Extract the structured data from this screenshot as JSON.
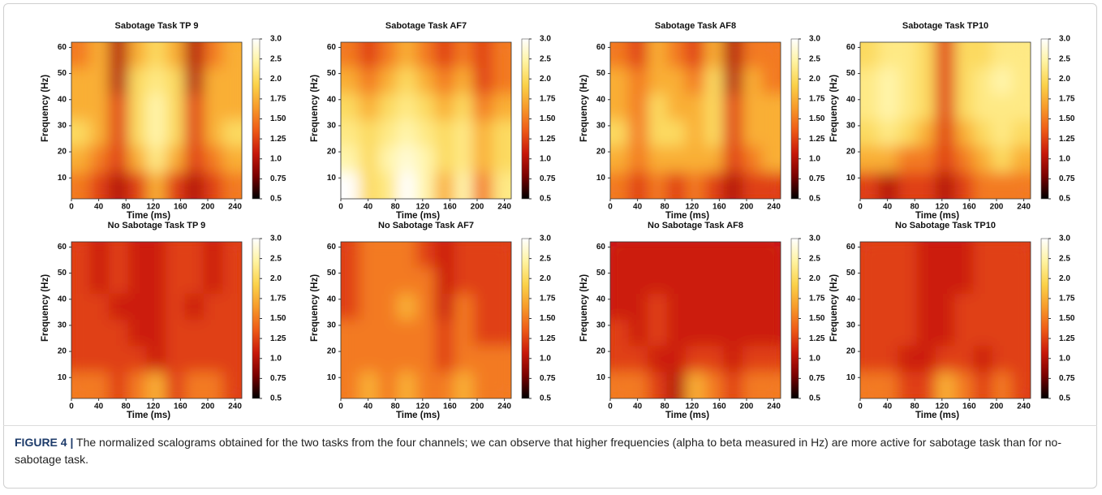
{
  "chart_data": [
    {
      "type": "heatmap",
      "title": "Sabotage Task TP 9",
      "xlabel": "Time (ms)",
      "ylabel": "Frequency (Hz)",
      "xlim": [
        0,
        250
      ],
      "ylim": [
        2,
        62
      ],
      "xticks": [
        0,
        40,
        80,
        120,
        160,
        200,
        240
      ],
      "yticks": [
        10,
        20,
        30,
        40,
        50,
        60
      ],
      "cticks": [
        {
          "value": 3,
          "label": "3.0"
        },
        2.5,
        {
          "value": 2,
          "label": "2.0"
        },
        1.75,
        {
          "value": 1.5,
          "label": "1.50"
        },
        1.25,
        {
          "value": 1,
          "label": "1.0"
        },
        0.75,
        0.5
      ],
      "colormap": [
        "#000000",
        "#7a0000",
        "#c8180a",
        "#ee5a16",
        "#f79a2a",
        "#fbd24a",
        "#fff3a0",
        "#ffffff"
      ],
      "z": [
        [
          1.5,
          1.75,
          1.0,
          1.75,
          2.0,
          1.75,
          1.0,
          1.5,
          1.75
        ],
        [
          1.75,
          1.75,
          1.0,
          2.0,
          2.25,
          2.0,
          1.0,
          1.75,
          1.75
        ],
        [
          1.75,
          1.75,
          1.25,
          2.0,
          2.5,
          2.0,
          1.25,
          1.75,
          1.75
        ],
        [
          2.0,
          1.75,
          1.25,
          2.0,
          2.5,
          2.0,
          1.25,
          1.75,
          2.0
        ],
        [
          1.75,
          1.5,
          1.25,
          1.75,
          2.25,
          1.75,
          1.25,
          1.5,
          1.75
        ],
        [
          1.5,
          1.25,
          1.0,
          1.25,
          1.75,
          1.25,
          1.0,
          1.25,
          1.5
        ]
      ]
    },
    {
      "type": "heatmap",
      "title": "Sabotage Task AF7",
      "xlabel": "Time (ms)",
      "ylabel": "Frequency (Hz)",
      "xlim": [
        0,
        250
      ],
      "ylim": [
        2,
        62
      ],
      "xticks": [
        0,
        40,
        80,
        120,
        160,
        200,
        240
      ],
      "yticks": [
        10,
        20,
        30,
        40,
        50,
        60
      ],
      "cticks": [
        {
          "value": 3,
          "label": "3.0"
        },
        2.5,
        {
          "value": 2,
          "label": "2.0"
        },
        1.75,
        {
          "value": 1.5,
          "label": "1.50"
        },
        1.25,
        {
          "value": 1,
          "label": "1.0"
        },
        0.75,
        0.5
      ],
      "colormap": [
        "#000000",
        "#7a0000",
        "#c8180a",
        "#ee5a16",
        "#f79a2a",
        "#fbd24a",
        "#fff3a0",
        "#ffffff"
      ],
      "z": [
        [
          1.5,
          1.25,
          1.5,
          1.75,
          1.5,
          1.25,
          1.5,
          1.25,
          1.5
        ],
        [
          1.75,
          1.5,
          1.75,
          2.0,
          1.75,
          1.5,
          1.75,
          1.25,
          1.5
        ],
        [
          2.0,
          1.75,
          2.0,
          2.25,
          2.0,
          1.75,
          2.0,
          1.5,
          1.75
        ],
        [
          2.25,
          2.0,
          2.25,
          2.5,
          2.25,
          2.0,
          2.25,
          1.75,
          2.0
        ],
        [
          2.5,
          2.0,
          2.5,
          2.75,
          2.5,
          2.0,
          2.25,
          1.75,
          2.0
        ],
        [
          3.0,
          2.0,
          2.25,
          3.0,
          2.5,
          1.75,
          2.5,
          1.5,
          2.25
        ]
      ]
    },
    {
      "type": "heatmap",
      "title": "Sabotage Task AF8",
      "xlabel": "Time (ms)",
      "ylabel": "Frequency (Hz)",
      "xlim": [
        0,
        250
      ],
      "ylim": [
        2,
        62
      ],
      "xticks": [
        0,
        40,
        80,
        120,
        160,
        200,
        240
      ],
      "yticks": [
        10,
        20,
        30,
        40,
        50,
        60
      ],
      "cticks": [
        {
          "value": 3,
          "label": "3.0"
        },
        2.5,
        {
          "value": 2,
          "label": "2.0"
        },
        1.75,
        {
          "value": 1.5,
          "label": "1.50"
        },
        1.25,
        {
          "value": 1,
          "label": "1.0"
        },
        0.75,
        0.5
      ],
      "colormap": [
        "#000000",
        "#7a0000",
        "#c8180a",
        "#ee5a16",
        "#f79a2a",
        "#fbd24a",
        "#fff3a0",
        "#ffffff"
      ],
      "z": [
        [
          1.5,
          1.25,
          1.75,
          1.5,
          1.25,
          1.75,
          1.0,
          1.5,
          1.5
        ],
        [
          1.75,
          1.5,
          1.75,
          1.75,
          1.5,
          2.0,
          1.0,
          1.75,
          1.5
        ],
        [
          1.75,
          1.5,
          2.0,
          1.75,
          1.75,
          2.0,
          1.25,
          1.75,
          1.75
        ],
        [
          2.0,
          1.5,
          2.0,
          2.0,
          1.75,
          2.0,
          1.25,
          1.75,
          1.75
        ],
        [
          1.75,
          1.5,
          1.75,
          1.75,
          1.75,
          1.75,
          1.25,
          1.5,
          1.75
        ],
        [
          1.5,
          1.25,
          1.5,
          1.25,
          1.5,
          1.25,
          1.0,
          1.25,
          1.25
        ]
      ]
    },
    {
      "type": "heatmap",
      "title": "Sabotage Task TP10",
      "xlabel": "Time (ms)",
      "ylabel": "Frequency (Hz)",
      "xlim": [
        0,
        250
      ],
      "ylim": [
        2,
        62
      ],
      "xticks": [
        0,
        40,
        80,
        120,
        160,
        200,
        240
      ],
      "yticks": [
        10,
        20,
        30,
        40,
        50,
        60
      ],
      "cticks": [
        {
          "value": 3,
          "label": "3.0"
        },
        2.5,
        {
          "value": 2,
          "label": "2.0"
        },
        1.75,
        {
          "value": 1.5,
          "label": "1.50"
        },
        1.25,
        {
          "value": 1,
          "label": "1.0"
        },
        0.75,
        0.5
      ],
      "colormap": [
        "#000000",
        "#7a0000",
        "#c8180a",
        "#ee5a16",
        "#f79a2a",
        "#fbd24a",
        "#fff3a0",
        "#ffffff"
      ],
      "z": [
        [
          2.0,
          2.25,
          2.25,
          2.0,
          1.25,
          2.0,
          2.0,
          2.25,
          2.25
        ],
        [
          2.25,
          2.5,
          2.25,
          2.0,
          1.25,
          2.0,
          2.25,
          2.5,
          2.25
        ],
        [
          2.25,
          2.5,
          2.25,
          2.0,
          1.25,
          2.0,
          2.25,
          2.25,
          2.25
        ],
        [
          2.0,
          2.25,
          2.0,
          1.75,
          1.25,
          1.75,
          2.0,
          2.25,
          2.0
        ],
        [
          1.75,
          1.75,
          1.5,
          1.5,
          1.25,
          1.5,
          1.75,
          2.0,
          1.75
        ],
        [
          1.25,
          1.0,
          1.25,
          1.25,
          1.0,
          1.25,
          1.5,
          1.5,
          1.5
        ]
      ]
    },
    {
      "type": "heatmap",
      "title": "No Sabotage Task TP 9",
      "xlabel": "Time (ms)",
      "ylabel": "Frequency (Hz)",
      "xlim": [
        0,
        250
      ],
      "ylim": [
        2,
        62
      ],
      "xticks": [
        0,
        40,
        80,
        120,
        160,
        200,
        240
      ],
      "yticks": [
        10,
        20,
        30,
        40,
        50,
        60
      ],
      "cticks": [
        {
          "value": 3,
          "label": "3.0"
        },
        2.5,
        {
          "value": 2,
          "label": "2.0"
        },
        1.75,
        {
          "value": 1.5,
          "label": "1.50"
        },
        1.25,
        {
          "value": 1,
          "label": "1.0"
        },
        0.75,
        0.5
      ],
      "colormap": [
        "#000000",
        "#7a0000",
        "#c8180a",
        "#ee5a16",
        "#f79a2a",
        "#fbd24a",
        "#fff3a0",
        "#ffffff"
      ],
      "z": [
        [
          1.25,
          1.1,
          1.25,
          1.1,
          1.1,
          1.25,
          1.25,
          1.1,
          1.25
        ],
        [
          1.25,
          1.1,
          1.25,
          1.1,
          1.1,
          1.25,
          1.25,
          1.1,
          1.25
        ],
        [
          1.25,
          1.25,
          1.1,
          1.1,
          1.1,
          1.25,
          1.1,
          1.25,
          1.25
        ],
        [
          1.25,
          1.25,
          1.25,
          1.1,
          1.1,
          1.25,
          1.25,
          1.25,
          1.25
        ],
        [
          1.25,
          1.25,
          1.25,
          1.25,
          1.1,
          1.25,
          1.25,
          1.25,
          1.25
        ],
        [
          1.5,
          1.5,
          1.25,
          1.5,
          1.75,
          1.25,
          1.5,
          1.5,
          1.25
        ]
      ]
    },
    {
      "type": "heatmap",
      "title": "No Sabotage Task AF7",
      "xlabel": "Time (ms)",
      "ylabel": "Frequency (Hz)",
      "xlim": [
        0,
        250
      ],
      "ylim": [
        2,
        62
      ],
      "xticks": [
        0,
        40,
        80,
        120,
        160,
        200,
        240
      ],
      "yticks": [
        10,
        20,
        30,
        40,
        50,
        60
      ],
      "cticks": [
        {
          "value": 3,
          "label": "3.0"
        },
        2.5,
        {
          "value": 2,
          "label": "2.0"
        },
        1.75,
        {
          "value": 1.5,
          "label": "1.50"
        },
        1.25,
        {
          "value": 1,
          "label": "1.0"
        },
        0.75,
        0.5
      ],
      "colormap": [
        "#000000",
        "#7a0000",
        "#c8180a",
        "#ee5a16",
        "#f79a2a",
        "#fbd24a",
        "#fff3a0",
        "#ffffff"
      ],
      "z": [
        [
          1.25,
          1.5,
          1.5,
          1.5,
          1.25,
          1.1,
          1.25,
          1.25,
          1.25
        ],
        [
          1.25,
          1.5,
          1.5,
          1.5,
          1.5,
          1.1,
          1.25,
          1.25,
          1.25
        ],
        [
          1.25,
          1.5,
          1.5,
          1.75,
          1.5,
          1.1,
          1.5,
          1.25,
          1.25
        ],
        [
          1.5,
          1.5,
          1.5,
          1.5,
          1.5,
          1.25,
          1.5,
          1.25,
          1.25
        ],
        [
          1.5,
          1.5,
          1.5,
          1.5,
          1.5,
          1.25,
          1.5,
          1.5,
          1.5
        ],
        [
          1.5,
          1.75,
          1.5,
          1.75,
          1.5,
          1.5,
          1.75,
          1.5,
          1.5
        ]
      ]
    },
    {
      "type": "heatmap",
      "title": "No Sabotage Task AF8",
      "xlabel": "Time (ms)",
      "ylabel": "Frequency (Hz)",
      "xlim": [
        0,
        250
      ],
      "ylim": [
        2,
        62
      ],
      "xticks": [
        0,
        40,
        80,
        120,
        160,
        200,
        240
      ],
      "yticks": [
        10,
        20,
        30,
        40,
        50,
        60
      ],
      "cticks": [
        {
          "value": 3,
          "label": "3.0"
        },
        2.5,
        {
          "value": 2,
          "label": "2.0"
        },
        1.75,
        {
          "value": 1.5,
          "label": "1.50"
        },
        1.25,
        {
          "value": 1,
          "label": "1.0"
        },
        0.75,
        0.5
      ],
      "colormap": [
        "#000000",
        "#7a0000",
        "#c8180a",
        "#ee5a16",
        "#f79a2a",
        "#fbd24a",
        "#fff3a0",
        "#ffffff"
      ],
      "z": [
        [
          1.1,
          1.1,
          1.1,
          1.1,
          1.1,
          1.1,
          1.1,
          1.1,
          1.1
        ],
        [
          1.1,
          1.1,
          1.1,
          1.1,
          1.1,
          1.1,
          1.1,
          1.1,
          1.1
        ],
        [
          1.1,
          1.1,
          1.25,
          1.1,
          1.1,
          1.1,
          1.1,
          1.1,
          1.1
        ],
        [
          1.25,
          1.1,
          1.25,
          1.1,
          1.1,
          1.1,
          1.1,
          1.1,
          1.1
        ],
        [
          1.25,
          1.25,
          1.1,
          1.1,
          1.25,
          1.25,
          1.1,
          1.25,
          1.25
        ],
        [
          1.5,
          1.5,
          1.25,
          1.0,
          1.75,
          1.5,
          1.25,
          1.5,
          1.5
        ]
      ]
    },
    {
      "type": "heatmap",
      "title": "No Sabotage Task TP10",
      "xlabel": "Time (ms)",
      "ylabel": "Frequency (Hz)",
      "xlim": [
        0,
        250
      ],
      "ylim": [
        2,
        62
      ],
      "xticks": [
        0,
        40,
        80,
        120,
        160,
        200,
        240
      ],
      "yticks": [
        10,
        20,
        30,
        40,
        50,
        60
      ],
      "cticks": [
        {
          "value": 3,
          "label": "3.0"
        },
        2.5,
        {
          "value": 2,
          "label": "2.0"
        },
        1.75,
        {
          "value": 1.5,
          "label": "1.50"
        },
        1.25,
        {
          "value": 1,
          "label": "1.0"
        },
        0.75,
        0.5
      ],
      "colormap": [
        "#000000",
        "#7a0000",
        "#c8180a",
        "#ee5a16",
        "#f79a2a",
        "#fbd24a",
        "#fff3a0",
        "#ffffff"
      ],
      "z": [
        [
          1.25,
          1.25,
          1.25,
          1.1,
          1.1,
          1.1,
          1.25,
          1.25,
          1.25
        ],
        [
          1.25,
          1.25,
          1.25,
          1.1,
          1.1,
          1.1,
          1.25,
          1.25,
          1.25
        ],
        [
          1.25,
          1.25,
          1.25,
          1.1,
          1.1,
          1.25,
          1.25,
          1.25,
          1.25
        ],
        [
          1.25,
          1.25,
          1.25,
          1.1,
          1.1,
          1.25,
          1.25,
          1.25,
          1.25
        ],
        [
          1.25,
          1.25,
          1.1,
          1.1,
          1.25,
          1.25,
          1.1,
          1.25,
          1.25
        ],
        [
          1.5,
          1.5,
          1.25,
          1.25,
          1.75,
          1.5,
          1.25,
          1.5,
          1.25
        ]
      ]
    }
  ],
  "caption": {
    "label": "FIGURE 4 |",
    "text": "The normalized scalograms obtained for the two tasks from the four channels; we can observe that higher frequencies (alpha to beta measured in Hz) are more active for sabotage task than for no-sabotage task."
  }
}
